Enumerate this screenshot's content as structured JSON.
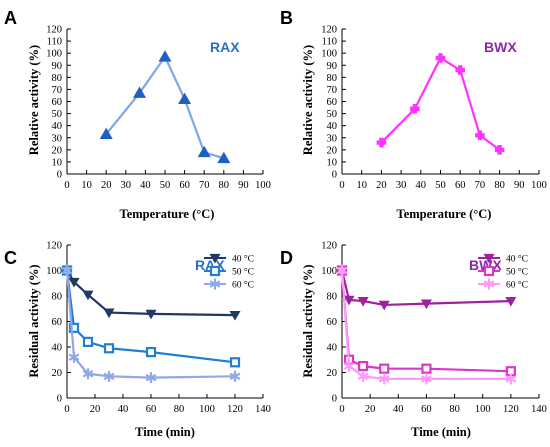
{
  "colors": {
    "rax_40": "#1f3864",
    "rax_50": "#1e7fd4",
    "rax_60": "#8fa8e8",
    "rax_temp": "#1f5fbf",
    "rax_temp_line": "#7fa6e6",
    "bwx_40": "#a020a0",
    "bwx_50": "#e033c8",
    "bwx_60": "#ff99ff",
    "bwx_temp": "#ff33ff",
    "rax_label": "#2a6fc2",
    "bwx_label": "#8a2aa3"
  },
  "chart_data": [
    {
      "panel": "A",
      "type": "line",
      "label": "RAX",
      "xlabel": "Temperature (°C)",
      "ylabel": "Relative activity (%)",
      "xlim": [
        0,
        100
      ],
      "ylim": [
        0,
        120
      ],
      "xticks": [
        0,
        10,
        20,
        30,
        40,
        50,
        60,
        70,
        80,
        90,
        100
      ],
      "yticks": [
        0,
        10,
        20,
        30,
        40,
        50,
        60,
        70,
        80,
        90,
        100,
        110,
        120
      ],
      "series": [
        {
          "marker": "triangle",
          "color": "rax_temp",
          "line_color": "rax_temp_line",
          "x": [
            20,
            37,
            50,
            60,
            70,
            80
          ],
          "y": [
            33,
            67,
            97,
            62,
            18,
            13
          ]
        }
      ]
    },
    {
      "panel": "B",
      "type": "line",
      "label": "BWX",
      "xlabel": "Temperature (°C)",
      "ylabel": "Relative activity (%)",
      "xlim": [
        0,
        100
      ],
      "ylim": [
        0,
        120
      ],
      "xticks": [
        0,
        10,
        20,
        30,
        40,
        50,
        60,
        70,
        80,
        90,
        100
      ],
      "yticks": [
        0,
        10,
        20,
        30,
        40,
        50,
        60,
        70,
        80,
        90,
        100,
        110,
        120
      ],
      "series": [
        {
          "marker": "plus",
          "color": "bwx_temp",
          "line_color": "bwx_temp",
          "x": [
            20,
            37,
            50,
            60,
            70,
            80
          ],
          "y": [
            26,
            54,
            96,
            86,
            32,
            20
          ]
        }
      ]
    },
    {
      "panel": "C",
      "type": "line",
      "label": "RAX",
      "xlabel": "Time (min)",
      "ylabel": "Residual activity (%)",
      "xlim": [
        0,
        140
      ],
      "ylim": [
        0,
        120
      ],
      "xticks": [
        0,
        20,
        40,
        60,
        80,
        100,
        120,
        140
      ],
      "yticks": [
        0,
        20,
        40,
        60,
        80,
        100,
        120
      ],
      "series": [
        {
          "name": "40 °C",
          "marker": "triangle-down",
          "color": "rax_40",
          "x": [
            0,
            5,
            15,
            30,
            60,
            120
          ],
          "y": [
            100,
            91,
            81,
            67,
            66,
            65
          ]
        },
        {
          "name": "50 °C",
          "marker": "square",
          "color": "rax_50",
          "x": [
            0,
            5,
            15,
            30,
            60,
            120
          ],
          "y": [
            100,
            55,
            44,
            39,
            36,
            28
          ]
        },
        {
          "name": "60 °C",
          "marker": "star",
          "color": "rax_60",
          "x": [
            0,
            5,
            15,
            30,
            60,
            120
          ],
          "y": [
            100,
            32,
            19,
            17,
            16,
            17
          ]
        }
      ]
    },
    {
      "panel": "D",
      "type": "line",
      "label": "BWX",
      "xlabel": "Time (min)",
      "ylabel": "Residual activity (%)",
      "xlim": [
        0,
        140
      ],
      "ylim": [
        0,
        120
      ],
      "xticks": [
        0,
        20,
        40,
        60,
        80,
        100,
        120,
        140
      ],
      "yticks": [
        0,
        20,
        40,
        60,
        80,
        100,
        120
      ],
      "series": [
        {
          "name": "40 °C",
          "marker": "triangle-down",
          "color": "bwx_40",
          "x": [
            0,
            5,
            15,
            30,
            60,
            120
          ],
          "y": [
            100,
            77,
            76,
            73,
            74,
            76
          ]
        },
        {
          "name": "50 °C",
          "marker": "square",
          "color": "bwx_50",
          "x": [
            0,
            5,
            15,
            30,
            60,
            120
          ],
          "y": [
            100,
            30,
            25,
            23,
            23,
            21
          ]
        },
        {
          "name": "60 °C",
          "marker": "star",
          "color": "bwx_60",
          "x": [
            0,
            5,
            15,
            30,
            60,
            120
          ],
          "y": [
            100,
            25,
            17,
            15,
            15,
            15
          ]
        }
      ]
    }
  ]
}
